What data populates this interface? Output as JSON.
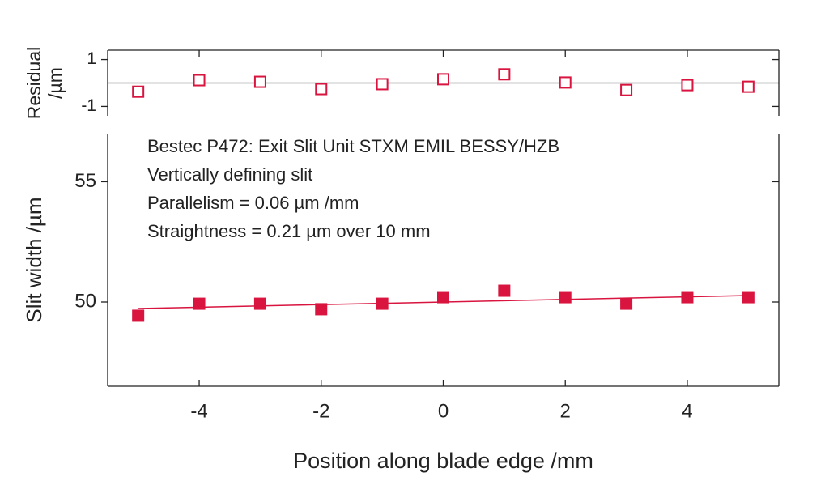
{
  "chart_data": [
    {
      "type": "scatter",
      "ylabel": [
        "Residual",
        "/µm"
      ],
      "x": [
        -5,
        -4,
        -3,
        -2,
        -1,
        0,
        1,
        2,
        3,
        4,
        5
      ],
      "series": [
        {
          "color": "#d8143f",
          "marker": "open-square",
          "values": [
            -0.37,
            0.12,
            0.05,
            -0.26,
            -0.05,
            0.16,
            0.37,
            0.02,
            -0.3,
            -0.09,
            -0.16
          ]
        }
      ],
      "hline": 0,
      "xlim": [
        -5.5,
        5.5
      ],
      "xticks": [
        -4,
        -2,
        0,
        2,
        4
      ],
      "ylim": [
        -1.4,
        1.4
      ],
      "yticks": [
        -1,
        1
      ]
    },
    {
      "type": "scatter",
      "xlabel": "Position along blade edge /mm",
      "ylabel": [
        "Slit width /µm"
      ],
      "annotations": [
        "Bestec P472: Exit Slit Unit STXM EMIL BESSY/HZB",
        "Vertically defining slit",
        "Parallelism =  0.06 µm /mm",
        "Straightness = 0.21 µm over 10 mm"
      ],
      "x": [
        -5,
        -4,
        -3,
        -2,
        -1,
        0,
        1,
        2,
        3,
        4,
        5
      ],
      "series": [
        {
          "color": "#d8143f",
          "marker": "filled-square",
          "values": [
            49.43,
            49.93,
            49.93,
            49.7,
            49.93,
            50.2,
            50.47,
            50.2,
            49.93,
            50.2,
            50.2
          ]
        },
        {
          "color": "#d8143f",
          "marker": "line",
          "x": [
            -5,
            5
          ],
          "values": [
            49.73,
            50.27
          ]
        }
      ],
      "xlim": [
        -5.5,
        5.5
      ],
      "xticks": [
        -4,
        -2,
        0,
        2,
        4
      ],
      "ylim": [
        46.5,
        57
      ],
      "yticks": [
        50,
        55
      ]
    }
  ]
}
